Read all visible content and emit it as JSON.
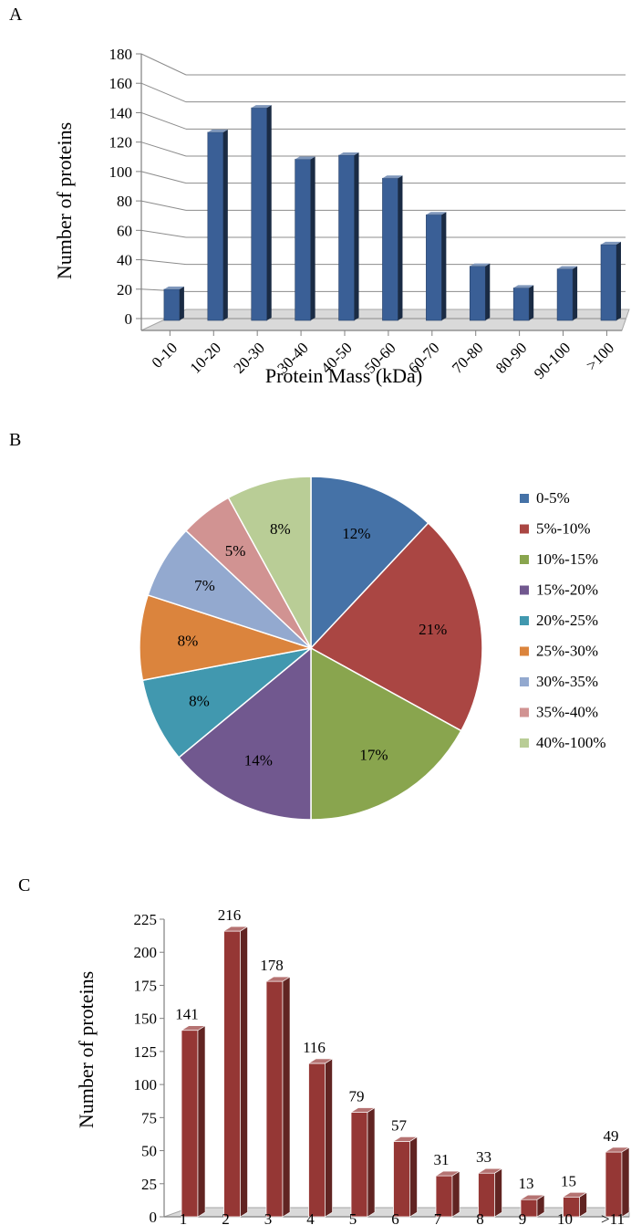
{
  "chart_data": [
    {
      "panel": "A",
      "type": "bar",
      "xlabel": "Protein Mass (kDa)",
      "ylabel": "Number of proteins",
      "ylim": [
        0,
        180
      ],
      "yticks": [
        0,
        20,
        40,
        60,
        80,
        100,
        120,
        140,
        160,
        180
      ],
      "grid": true,
      "categories": [
        "0-10",
        "10-20",
        "20-30",
        "30-40",
        "40-50",
        "50-60",
        "60-70",
        "70-80",
        "80-90",
        "90-100",
        ">100"
      ],
      "values": [
        23,
        139,
        157,
        119,
        122,
        105,
        78,
        40,
        24,
        38,
        56
      ],
      "color": "#3a5f96"
    },
    {
      "panel": "B",
      "type": "pie",
      "legend": "right",
      "labels": [
        "0-5%",
        "5%-10%",
        "10%-15%",
        "15%-20%",
        "20%-25%",
        "25%-30%",
        "30%-35%",
        "35%-40%",
        "40%-100%"
      ],
      "values": [
        12,
        21,
        17,
        14,
        8,
        8,
        7,
        5,
        8
      ],
      "data_labels": [
        "12%",
        "21%",
        "17%",
        "14%",
        "8%",
        "8%",
        "7%",
        "5%",
        "8%"
      ],
      "colors": [
        "#4572a7",
        "#aa4643",
        "#89a54e",
        "#71588f",
        "#4198af",
        "#db843d",
        "#93a9cf",
        "#d19392",
        "#b9cd96"
      ]
    },
    {
      "panel": "C",
      "type": "bar",
      "xlabel": "",
      "ylabel": "Number of proteins",
      "ylim": [
        0,
        225
      ],
      "yticks": [
        0,
        25,
        50,
        75,
        100,
        125,
        150,
        175,
        200,
        225
      ],
      "grid": false,
      "categories": [
        "1",
        "2",
        "3",
        "4",
        "5",
        "6",
        "7",
        "8",
        "9",
        "10",
        ">11"
      ],
      "values": [
        141,
        216,
        178,
        116,
        79,
        57,
        31,
        33,
        13,
        15,
        49
      ],
      "data_labels": [
        "141",
        "216",
        "178",
        "116",
        "79",
        "57",
        "31",
        "33",
        "13",
        "15",
        "49"
      ],
      "color": "#953735"
    }
  ]
}
